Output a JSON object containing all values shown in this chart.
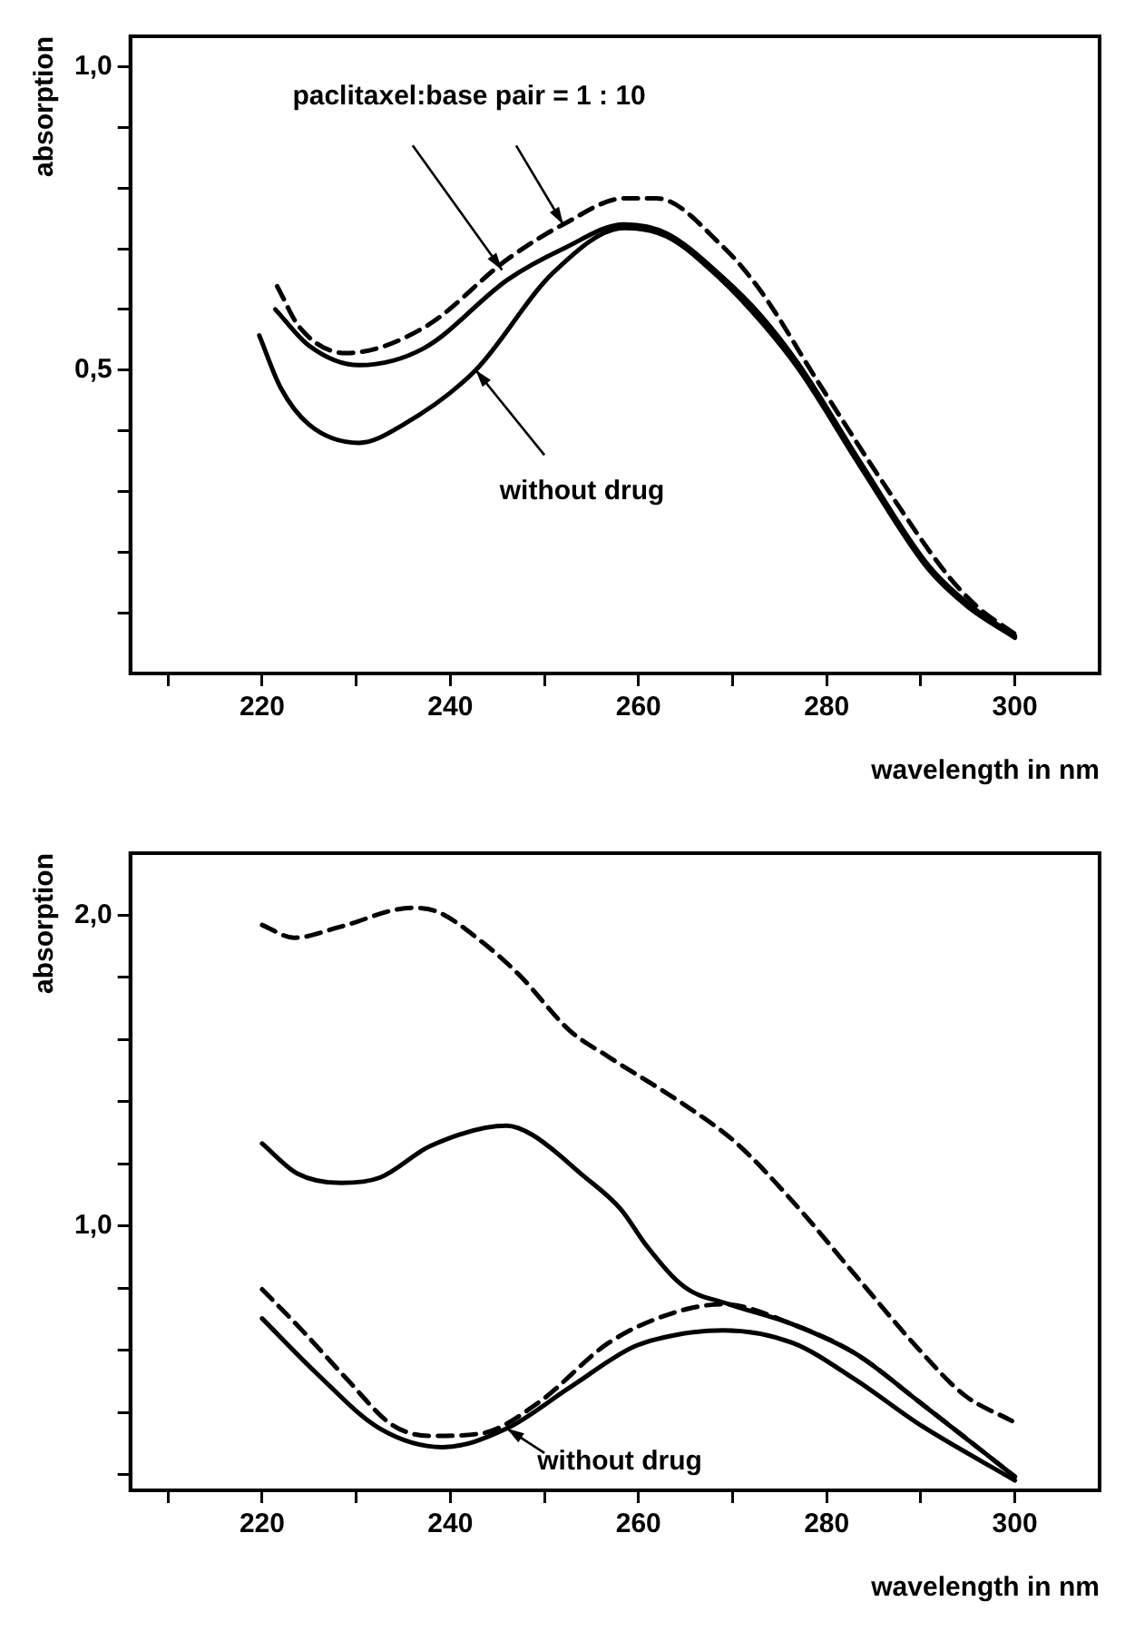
{
  "chart_data": [
    {
      "type": "line",
      "xlabel": "wavelength in nm",
      "ylabel": "absorption",
      "xlim": [
        206,
        309
      ],
      "ylim": [
        0,
        1.05
      ],
      "xticks": [
        {
          "value": 210,
          "label": null
        },
        220,
        {
          "value": 230,
          "label": null
        },
        240,
        {
          "value": 250,
          "label": null
        },
        260,
        {
          "value": 270,
          "label": null
        },
        280,
        {
          "value": 290,
          "label": null
        },
        300
      ],
      "yticks": [
        {
          "value": 0.1,
          "label": null
        },
        {
          "value": 0.2,
          "label": null
        },
        {
          "value": 0.3,
          "label": null
        },
        {
          "value": 0.4,
          "label": null
        },
        {
          "value": 0.5,
          "label": "0,5"
        },
        {
          "value": 0.6,
          "label": null
        },
        {
          "value": 0.7,
          "label": null
        },
        {
          "value": 0.8,
          "label": null
        },
        {
          "value": 0.9,
          "label": null
        },
        {
          "value": 1.0,
          "label": "1,0"
        }
      ],
      "grid": false,
      "legend": false,
      "marker": "none",
      "series": [
        {
          "color": "#000000",
          "line_style": "solid",
          "x": [
            219.7,
            222,
            225,
            230.3,
            235,
            242.7,
            250.9,
            258.5,
            263,
            268.8,
            273,
            277,
            283.9,
            290.7,
            295,
            300
          ],
          "values": [
            0.557,
            0.47,
            0.41,
            0.38,
            0.41,
            0.5,
            0.66,
            0.734,
            0.72,
            0.649,
            0.58,
            0.502,
            0.333,
            0.174,
            0.11,
            0.059
          ]
        },
        {
          "color": "#000000",
          "line_style": "solid",
          "x": [
            221.4,
            225,
            230.3,
            237.2,
            246.1,
            252,
            258.5,
            263,
            268.8,
            273,
            277,
            283.9,
            290.7,
            295,
            300
          ],
          "values": [
            0.6,
            0.54,
            0.508,
            0.536,
            0.649,
            0.7,
            0.74,
            0.725,
            0.655,
            0.59,
            0.51,
            0.34,
            0.18,
            0.115,
            0.062
          ]
        },
        {
          "color": "#000000",
          "line_style": "dashed",
          "x": [
            221.6,
            224,
            228.9,
            237.2,
            246.1,
            252,
            258.5,
            261.9,
            268.8,
            273,
            279.1,
            286.6,
            292.8,
            296,
            300
          ],
          "values": [
            0.638,
            0.57,
            0.528,
            0.57,
            0.683,
            0.74,
            0.783,
            0.783,
            0.706,
            0.63,
            0.48,
            0.3,
            0.163,
            0.11,
            0.065
          ]
        }
      ],
      "annotations": [
        {
          "text": "paclitaxel:base pair = 1 : 10",
          "x": 252,
          "y": 0.74
        },
        {
          "text": "without drug",
          "x": 242.7,
          "y": 0.5
        }
      ]
    },
    {
      "type": "line",
      "xlabel": "wavelength in nm",
      "ylabel": "absorption",
      "xlim": [
        206,
        309
      ],
      "ylim": [
        0.15,
        2.2
      ],
      "xticks": [
        {
          "value": 210,
          "label": null
        },
        220,
        {
          "value": 230,
          "label": null
        },
        240,
        {
          "value": 250,
          "label": null
        },
        260,
        {
          "value": 270,
          "label": null
        },
        280,
        {
          "value": 290,
          "label": null
        },
        300
      ],
      "yticks": [
        {
          "value": 0.2,
          "label": null
        },
        {
          "value": 0.4,
          "label": null
        },
        {
          "value": 0.6,
          "label": null
        },
        {
          "value": 0.8,
          "label": null
        },
        {
          "value": 1.0,
          "label": "1,0"
        },
        {
          "value": 1.2,
          "label": null
        },
        {
          "value": 1.4,
          "label": null
        },
        {
          "value": 1.6,
          "label": null
        },
        {
          "value": 1.8,
          "label": null
        },
        {
          "value": 2.0,
          "label": "2,0"
        }
      ],
      "grid": false,
      "legend": false,
      "marker": "none",
      "series": [
        {
          "color": "#000000",
          "line_style": "dashed",
          "x": [
            220,
            223.4,
            228.4,
            235.9,
            238.6,
            243.3,
            247.3,
            252.7,
            256.8,
            264.9,
            270.3,
            276.4,
            283.1,
            289.9,
            294.6,
            299.7
          ],
          "values": [
            1.969,
            1.928,
            1.964,
            2.024,
            2.012,
            1.916,
            1.809,
            1.629,
            1.545,
            1.39,
            1.27,
            1.079,
            0.84,
            0.6,
            0.457,
            0.373
          ]
        },
        {
          "color": "#000000",
          "line_style": "solid",
          "x": [
            220,
            223.7,
            228.4,
            232.5,
            237.9,
            246,
            248.7,
            254.1,
            258.1,
            260.9,
            264.9,
            269.6,
            276.4,
            283.1,
            289.9,
            300
          ],
          "values": [
            1.266,
            1.17,
            1.139,
            1.156,
            1.258,
            1.323,
            1.294,
            1.163,
            1.055,
            0.935,
            0.804,
            0.749,
            0.684,
            0.589,
            0.433,
            0.194
          ]
        },
        {
          "color": "#000000",
          "line_style": "dashed",
          "x": [
            220,
            224.4,
            229.1,
            233.8,
            237.9,
            243.3,
            249.4,
            256.8,
            263.6,
            269,
            276.4,
            283.1,
            289.9,
            300
          ],
          "values": [
            0.797,
            0.66,
            0.505,
            0.361,
            0.325,
            0.333,
            0.433,
            0.624,
            0.72,
            0.749,
            0.684,
            0.589,
            0.433,
            0.194
          ]
        },
        {
          "color": "#000000",
          "line_style": "solid",
          "x": [
            220,
            225.7,
            232.5,
            239.2,
            246,
            252.7,
            259.5,
            264,
            269,
            276.4,
            283.1,
            289.9,
            300
          ],
          "values": [
            0.703,
            0.529,
            0.349,
            0.289,
            0.349,
            0.481,
            0.612,
            0.65,
            0.665,
            0.624,
            0.505,
            0.361,
            0.182
          ]
        }
      ],
      "annotations": [
        {
          "text": "without drug",
          "x": 246,
          "y": 0.349
        }
      ]
    }
  ]
}
